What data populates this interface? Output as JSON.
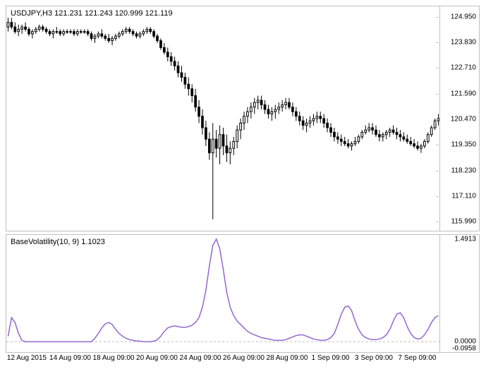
{
  "price_chart": {
    "type": "candlestick",
    "label": "USDJPY,H3  121.231 121.243 120.999 121.119",
    "label_fontsize": 11,
    "label_color": "#000000",
    "ylim": [
      115.6,
      125.4
    ],
    "yticks": [
      115.99,
      117.11,
      118.23,
      119.35,
      120.47,
      121.59,
      122.71,
      123.83,
      124.95
    ],
    "ytick_labels": [
      "115.990",
      "117.110",
      "118.230",
      "119.350",
      "120.470",
      "121.590",
      "122.710",
      "123.830",
      "124.950"
    ],
    "candle_up_color": "#000000",
    "candle_down_color": "#000000",
    "wick_color": "#000000",
    "background_color": "#ffffff",
    "border_color": "#c0c0c0",
    "data": [
      {
        "o": 124.5,
        "h": 124.9,
        "l": 124.3,
        "c": 124.7
      },
      {
        "o": 124.7,
        "h": 124.9,
        "l": 124.4,
        "c": 124.5
      },
      {
        "o": 124.5,
        "h": 124.7,
        "l": 124.2,
        "c": 124.3
      },
      {
        "o": 124.3,
        "h": 124.6,
        "l": 124.1,
        "c": 124.4
      },
      {
        "o": 124.4,
        "h": 124.6,
        "l": 124.2,
        "c": 124.5
      },
      {
        "o": 124.5,
        "h": 124.7,
        "l": 124.3,
        "c": 124.4
      },
      {
        "o": 124.4,
        "h": 124.5,
        "l": 124.1,
        "c": 124.2
      },
      {
        "o": 124.2,
        "h": 124.4,
        "l": 124.0,
        "c": 124.3
      },
      {
        "o": 124.3,
        "h": 124.5,
        "l": 124.2,
        "c": 124.4
      },
      {
        "o": 124.4,
        "h": 124.6,
        "l": 124.3,
        "c": 124.5
      },
      {
        "o": 124.5,
        "h": 124.6,
        "l": 124.3,
        "c": 124.4
      },
      {
        "o": 124.4,
        "h": 124.5,
        "l": 124.2,
        "c": 124.3
      },
      {
        "o": 124.3,
        "h": 124.4,
        "l": 124.1,
        "c": 124.2
      },
      {
        "o": 124.2,
        "h": 124.4,
        "l": 124.0,
        "c": 124.3
      },
      {
        "o": 124.3,
        "h": 124.5,
        "l": 124.2,
        "c": 124.3
      },
      {
        "o": 124.3,
        "h": 124.4,
        "l": 124.1,
        "c": 124.2
      },
      {
        "o": 124.2,
        "h": 124.4,
        "l": 124.1,
        "c": 124.3
      },
      {
        "o": 124.3,
        "h": 124.4,
        "l": 124.2,
        "c": 124.3
      },
      {
        "o": 124.3,
        "h": 124.4,
        "l": 124.2,
        "c": 124.3
      },
      {
        "o": 124.3,
        "h": 124.4,
        "l": 124.1,
        "c": 124.2
      },
      {
        "o": 124.2,
        "h": 124.4,
        "l": 124.1,
        "c": 124.3
      },
      {
        "o": 124.3,
        "h": 124.4,
        "l": 124.2,
        "c": 124.3
      },
      {
        "o": 124.3,
        "h": 124.4,
        "l": 124.2,
        "c": 124.3
      },
      {
        "o": 124.3,
        "h": 124.4,
        "l": 124.1,
        "c": 124.2
      },
      {
        "o": 124.2,
        "h": 124.3,
        "l": 123.9,
        "c": 124.0
      },
      {
        "o": 124.0,
        "h": 124.2,
        "l": 123.8,
        "c": 124.1
      },
      {
        "o": 124.1,
        "h": 124.3,
        "l": 124.0,
        "c": 124.2
      },
      {
        "o": 124.2,
        "h": 124.4,
        "l": 124.0,
        "c": 124.1
      },
      {
        "o": 124.1,
        "h": 124.2,
        "l": 123.9,
        "c": 124.0
      },
      {
        "o": 124.0,
        "h": 124.2,
        "l": 123.8,
        "c": 123.9
      },
      {
        "o": 123.9,
        "h": 124.1,
        "l": 123.7,
        "c": 124.0
      },
      {
        "o": 124.0,
        "h": 124.2,
        "l": 123.9,
        "c": 124.1
      },
      {
        "o": 124.1,
        "h": 124.3,
        "l": 124.0,
        "c": 124.2
      },
      {
        "o": 124.2,
        "h": 124.4,
        "l": 124.1,
        "c": 124.3
      },
      {
        "o": 124.3,
        "h": 124.5,
        "l": 124.2,
        "c": 124.4
      },
      {
        "o": 124.4,
        "h": 124.5,
        "l": 124.2,
        "c": 124.3
      },
      {
        "o": 124.3,
        "h": 124.4,
        "l": 124.1,
        "c": 124.2
      },
      {
        "o": 124.2,
        "h": 124.3,
        "l": 124.0,
        "c": 124.1
      },
      {
        "o": 124.1,
        "h": 124.3,
        "l": 124.0,
        "c": 124.2
      },
      {
        "o": 124.2,
        "h": 124.4,
        "l": 124.1,
        "c": 124.3
      },
      {
        "o": 124.3,
        "h": 124.5,
        "l": 124.2,
        "c": 124.4
      },
      {
        "o": 124.4,
        "h": 124.5,
        "l": 124.2,
        "c": 124.3
      },
      {
        "o": 124.3,
        "h": 124.4,
        "l": 124.0,
        "c": 124.1
      },
      {
        "o": 124.1,
        "h": 124.2,
        "l": 123.8,
        "c": 123.9
      },
      {
        "o": 123.9,
        "h": 124.0,
        "l": 123.5,
        "c": 123.6
      },
      {
        "o": 123.6,
        "h": 123.8,
        "l": 123.3,
        "c": 123.4
      },
      {
        "o": 123.4,
        "h": 123.6,
        "l": 123.0,
        "c": 123.2
      },
      {
        "o": 123.2,
        "h": 123.4,
        "l": 122.8,
        "c": 123.0
      },
      {
        "o": 123.0,
        "h": 123.2,
        "l": 122.6,
        "c": 122.8
      },
      {
        "o": 122.8,
        "h": 123.0,
        "l": 122.3,
        "c": 122.5
      },
      {
        "o": 122.5,
        "h": 122.8,
        "l": 122.1,
        "c": 122.3
      },
      {
        "o": 122.3,
        "h": 122.5,
        "l": 121.8,
        "c": 122.0
      },
      {
        "o": 122.0,
        "h": 122.3,
        "l": 121.5,
        "c": 121.8
      },
      {
        "o": 121.8,
        "h": 122.0,
        "l": 121.2,
        "c": 121.5
      },
      {
        "o": 121.5,
        "h": 121.8,
        "l": 120.8,
        "c": 121.0
      },
      {
        "o": 121.0,
        "h": 121.3,
        "l": 120.3,
        "c": 120.6
      },
      {
        "o": 120.6,
        "h": 120.9,
        "l": 119.8,
        "c": 120.1
      },
      {
        "o": 120.1,
        "h": 120.4,
        "l": 119.3,
        "c": 119.6
      },
      {
        "o": 119.6,
        "h": 119.9,
        "l": 118.7,
        "c": 119.0
      },
      {
        "o": 119.0,
        "h": 120.3,
        "l": 116.1,
        "c": 119.6
      },
      {
        "o": 119.6,
        "h": 120.0,
        "l": 118.8,
        "c": 119.2
      },
      {
        "o": 119.2,
        "h": 120.2,
        "l": 118.5,
        "c": 119.8
      },
      {
        "o": 119.8,
        "h": 120.1,
        "l": 118.9,
        "c": 119.3
      },
      {
        "o": 119.3,
        "h": 119.8,
        "l": 118.6,
        "c": 119.0
      },
      {
        "o": 119.0,
        "h": 119.5,
        "l": 118.5,
        "c": 119.2
      },
      {
        "o": 119.2,
        "h": 119.7,
        "l": 118.9,
        "c": 119.5
      },
      {
        "o": 119.5,
        "h": 120.2,
        "l": 119.2,
        "c": 120.0
      },
      {
        "o": 120.0,
        "h": 120.5,
        "l": 119.6,
        "c": 120.3
      },
      {
        "o": 120.3,
        "h": 120.8,
        "l": 120.0,
        "c": 120.6
      },
      {
        "o": 120.6,
        "h": 121.0,
        "l": 120.3,
        "c": 120.8
      },
      {
        "o": 120.8,
        "h": 121.2,
        "l": 120.5,
        "c": 121.0
      },
      {
        "o": 121.0,
        "h": 121.4,
        "l": 120.7,
        "c": 121.2
      },
      {
        "o": 121.2,
        "h": 121.5,
        "l": 120.9,
        "c": 121.3
      },
      {
        "o": 121.3,
        "h": 121.5,
        "l": 120.9,
        "c": 121.1
      },
      {
        "o": 121.1,
        "h": 121.3,
        "l": 120.7,
        "c": 120.9
      },
      {
        "o": 120.9,
        "h": 121.1,
        "l": 120.5,
        "c": 120.7
      },
      {
        "o": 120.7,
        "h": 121.0,
        "l": 120.4,
        "c": 120.8
      },
      {
        "o": 120.8,
        "h": 121.1,
        "l": 120.5,
        "c": 120.9
      },
      {
        "o": 120.9,
        "h": 121.2,
        "l": 120.7,
        "c": 121.0
      },
      {
        "o": 121.0,
        "h": 121.3,
        "l": 120.8,
        "c": 121.1
      },
      {
        "o": 121.1,
        "h": 121.4,
        "l": 120.9,
        "c": 121.2
      },
      {
        "o": 121.2,
        "h": 121.4,
        "l": 120.9,
        "c": 121.0
      },
      {
        "o": 121.0,
        "h": 121.2,
        "l": 120.6,
        "c": 120.8
      },
      {
        "o": 120.8,
        "h": 121.0,
        "l": 120.4,
        "c": 120.6
      },
      {
        "o": 120.6,
        "h": 120.8,
        "l": 120.2,
        "c": 120.4
      },
      {
        "o": 120.4,
        "h": 120.6,
        "l": 120.0,
        "c": 120.2
      },
      {
        "o": 120.2,
        "h": 120.5,
        "l": 119.9,
        "c": 120.3
      },
      {
        "o": 120.3,
        "h": 120.6,
        "l": 120.1,
        "c": 120.4
      },
      {
        "o": 120.4,
        "h": 120.7,
        "l": 120.2,
        "c": 120.5
      },
      {
        "o": 120.5,
        "h": 120.8,
        "l": 120.3,
        "c": 120.6
      },
      {
        "o": 120.6,
        "h": 120.8,
        "l": 120.3,
        "c": 120.5
      },
      {
        "o": 120.5,
        "h": 120.7,
        "l": 120.1,
        "c": 120.3
      },
      {
        "o": 120.3,
        "h": 120.5,
        "l": 119.9,
        "c": 120.1
      },
      {
        "o": 120.1,
        "h": 120.3,
        "l": 119.7,
        "c": 119.9
      },
      {
        "o": 119.9,
        "h": 120.1,
        "l": 119.5,
        "c": 119.7
      },
      {
        "o": 119.7,
        "h": 119.9,
        "l": 119.4,
        "c": 119.6
      },
      {
        "o": 119.6,
        "h": 119.8,
        "l": 119.3,
        "c": 119.5
      },
      {
        "o": 119.5,
        "h": 119.7,
        "l": 119.3,
        "c": 119.4
      },
      {
        "o": 119.4,
        "h": 119.6,
        "l": 119.2,
        "c": 119.3
      },
      {
        "o": 119.3,
        "h": 119.5,
        "l": 119.1,
        "c": 119.4
      },
      {
        "o": 119.4,
        "h": 119.7,
        "l": 119.3,
        "c": 119.5
      },
      {
        "o": 119.5,
        "h": 119.8,
        "l": 119.4,
        "c": 119.7
      },
      {
        "o": 119.7,
        "h": 120.0,
        "l": 119.6,
        "c": 119.9
      },
      {
        "o": 119.9,
        "h": 120.2,
        "l": 119.8,
        "c": 120.0
      },
      {
        "o": 120.0,
        "h": 120.3,
        "l": 119.9,
        "c": 120.1
      },
      {
        "o": 120.1,
        "h": 120.3,
        "l": 119.8,
        "c": 120.0
      },
      {
        "o": 120.0,
        "h": 120.2,
        "l": 119.7,
        "c": 119.8
      },
      {
        "o": 119.8,
        "h": 120.0,
        "l": 119.5,
        "c": 119.7
      },
      {
        "o": 119.7,
        "h": 119.9,
        "l": 119.5,
        "c": 119.8
      },
      {
        "o": 119.8,
        "h": 120.0,
        "l": 119.6,
        "c": 119.9
      },
      {
        "o": 119.9,
        "h": 120.1,
        "l": 119.7,
        "c": 120.0
      },
      {
        "o": 120.0,
        "h": 120.2,
        "l": 119.8,
        "c": 119.9
      },
      {
        "o": 119.9,
        "h": 120.1,
        "l": 119.6,
        "c": 119.8
      },
      {
        "o": 119.8,
        "h": 120.0,
        "l": 119.5,
        "c": 119.7
      },
      {
        "o": 119.7,
        "h": 119.9,
        "l": 119.5,
        "c": 119.6
      },
      {
        "o": 119.6,
        "h": 119.8,
        "l": 119.4,
        "c": 119.5
      },
      {
        "o": 119.5,
        "h": 119.7,
        "l": 119.3,
        "c": 119.4
      },
      {
        "o": 119.4,
        "h": 119.6,
        "l": 119.2,
        "c": 119.3
      },
      {
        "o": 119.3,
        "h": 119.5,
        "l": 119.1,
        "c": 119.2
      },
      {
        "o": 119.2,
        "h": 119.4,
        "l": 119.0,
        "c": 119.3
      },
      {
        "o": 119.3,
        "h": 119.6,
        "l": 119.2,
        "c": 119.5
      },
      {
        "o": 119.5,
        "h": 119.9,
        "l": 119.4,
        "c": 119.8
      },
      {
        "o": 119.8,
        "h": 120.2,
        "l": 119.7,
        "c": 120.1
      },
      {
        "o": 120.1,
        "h": 120.5,
        "l": 120.0,
        "c": 120.4
      },
      {
        "o": 120.4,
        "h": 120.7,
        "l": 120.2,
        "c": 120.5
      }
    ]
  },
  "indicator_chart": {
    "type": "line",
    "label": "BaseVolatility(10, 9) 1.1023",
    "label_fontsize": 11,
    "label_color": "#000000",
    "ylim": [
      -0.15,
      1.55
    ],
    "yticks": [
      -0.0958,
      0.0,
      1.4913
    ],
    "ytick_labels": [
      "-0.0958",
      "0.0000",
      "1.4913"
    ],
    "line_color": "#9467cf",
    "line_width": 1.5,
    "zero_line_color": "#c0c0c0",
    "zero_line_dash": "3,3",
    "background_color": "#ffffff",
    "border_color": "#c0c0c0",
    "data": [
      0.08,
      0.35,
      0.28,
      0.12,
      0.02,
      0.0,
      0.0,
      0.0,
      0.0,
      0.0,
      0.0,
      0.0,
      0.0,
      0.0,
      0.0,
      0.0,
      0.0,
      0.0,
      0.0,
      0.0,
      0.0,
      0.0,
      0.0,
      0.0,
      0.0,
      0.05,
      0.12,
      0.2,
      0.26,
      0.28,
      0.25,
      0.18,
      0.12,
      0.08,
      0.05,
      0.03,
      0.02,
      0.01,
      0.01,
      0.0,
      0.0,
      0.0,
      0.01,
      0.03,
      0.08,
      0.15,
      0.2,
      0.22,
      0.23,
      0.22,
      0.21,
      0.21,
      0.22,
      0.24,
      0.28,
      0.35,
      0.5,
      0.75,
      1.1,
      1.4,
      1.49,
      1.35,
      1.05,
      0.72,
      0.5,
      0.38,
      0.3,
      0.25,
      0.2,
      0.15,
      0.12,
      0.1,
      0.08,
      0.06,
      0.05,
      0.04,
      0.03,
      0.02,
      0.02,
      0.02,
      0.03,
      0.05,
      0.07,
      0.09,
      0.1,
      0.1,
      0.08,
      0.06,
      0.04,
      0.03,
      0.02,
      0.02,
      0.03,
      0.06,
      0.12,
      0.25,
      0.4,
      0.5,
      0.52,
      0.45,
      0.3,
      0.18,
      0.1,
      0.06,
      0.04,
      0.03,
      0.03,
      0.04,
      0.06,
      0.1,
      0.18,
      0.3,
      0.4,
      0.42,
      0.35,
      0.22,
      0.12,
      0.06,
      0.04,
      0.05,
      0.1,
      0.18,
      0.28,
      0.35,
      0.38
    ]
  },
  "xaxis": {
    "tick_labels": [
      "12 Aug 2015",
      "14 Aug 09:00",
      "18 Aug 09:00",
      "20 Aug 09:00",
      "24 Aug 09:00",
      "26 Aug 09:00",
      "28 Aug 09:00",
      "1 Sep 09:00",
      "3 Sep 09:00",
      "7 Sep 09:00"
    ],
    "tick_color": "#000000",
    "label_fontsize": 10
  }
}
